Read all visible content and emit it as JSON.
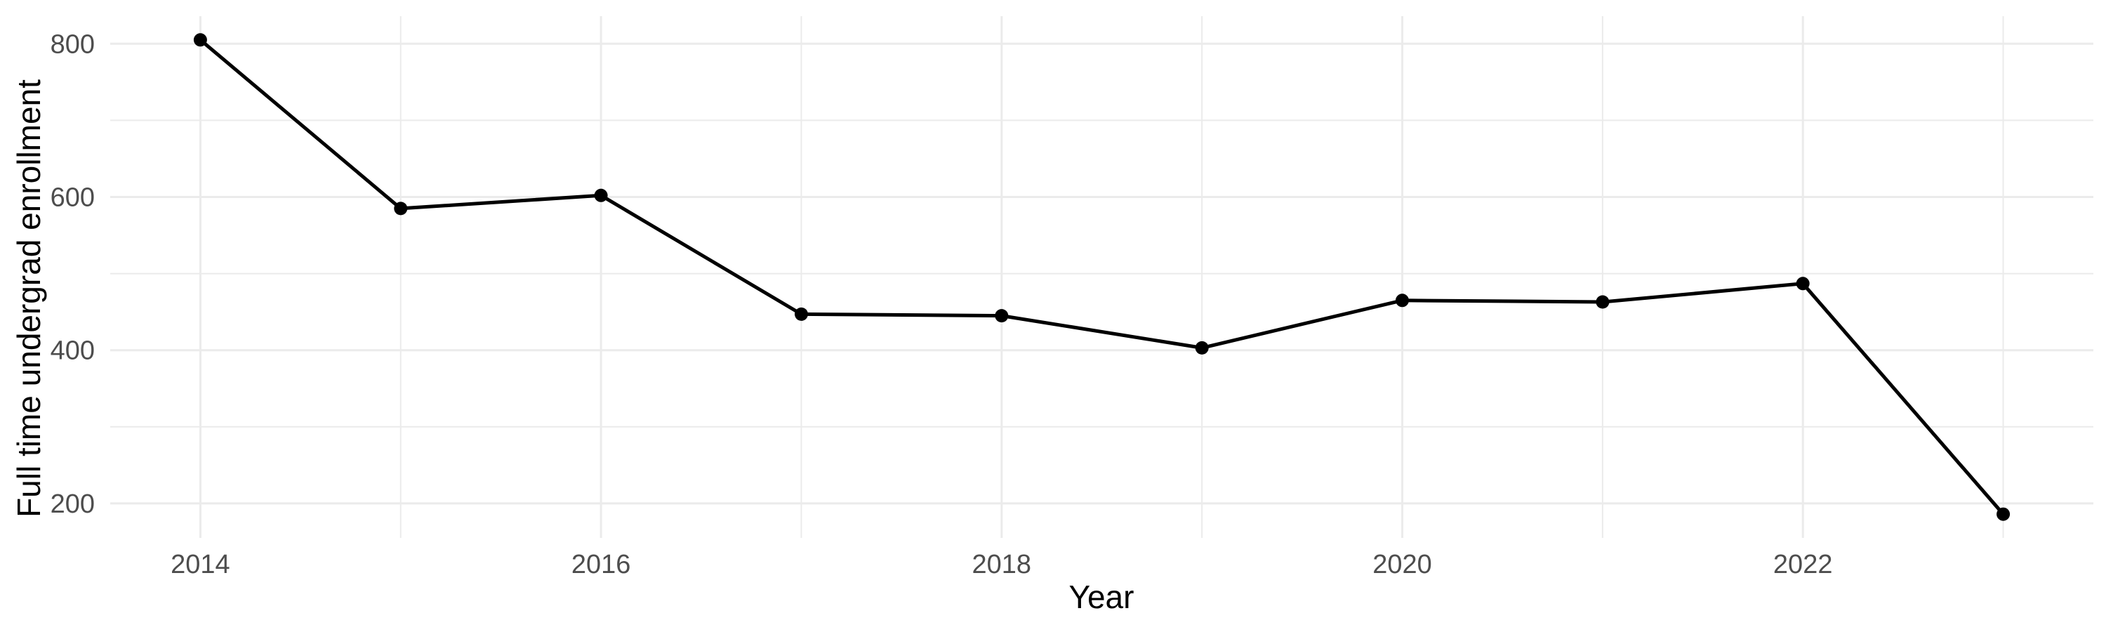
{
  "chart_data": {
    "type": "line",
    "title": "",
    "xlabel": "Year",
    "ylabel": "Full time undergrad enrollment",
    "series": [
      {
        "name": "Full time undergrad enrollment",
        "x": [
          2014,
          2015,
          2016,
          2017,
          2018,
          2019,
          2020,
          2021,
          2022,
          2023
        ],
        "values": [
          805,
          585,
          602,
          447,
          445,
          403,
          465,
          463,
          487,
          186
        ]
      }
    ],
    "x_ticks_major": [
      2014,
      2016,
      2018,
      2020,
      2022
    ],
    "x_gridlines_minor": [
      2015,
      2017,
      2019,
      2021,
      2023
    ],
    "y_ticks_major": [
      200,
      400,
      600,
      800
    ],
    "y_gridlines_minor": [
      300,
      500,
      700
    ],
    "xlim": [
      2013.55,
      2023.45
    ],
    "ylim": [
      155,
      836
    ],
    "grid": "major_and_minor",
    "legend": "none",
    "marker": "filled-circle",
    "colors": {
      "line": "#000000",
      "point": "#000000",
      "grid": "#EBEBEB",
      "tick_label": "#4D4D4D",
      "axis_title": "#000000",
      "background": "#FFFFFF"
    }
  }
}
